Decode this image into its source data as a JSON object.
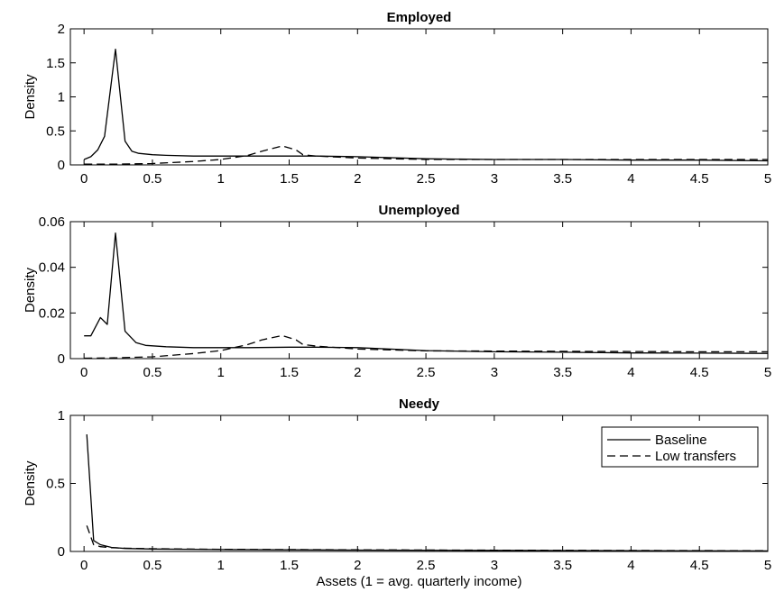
{
  "chart_data": [
    {
      "type": "line",
      "title": "Employed",
      "ylabel": "Density",
      "xlabel": "",
      "xlim": [
        -0.1,
        5
      ],
      "ylim": [
        0,
        2
      ],
      "xticks": [
        0,
        0.5,
        1,
        1.5,
        2,
        2.5,
        3,
        3.5,
        4,
        4.5,
        5
      ],
      "xtick_labels": [
        "0",
        "0.5",
        "1",
        "1.5",
        "2",
        "2.5",
        "3",
        "3.5",
        "4",
        "4.5",
        "5"
      ],
      "yticks": [
        0,
        0.5,
        1,
        1.5,
        2
      ],
      "ytick_labels": [
        "0",
        "0.5",
        "1",
        "1.5",
        "2"
      ],
      "series": [
        {
          "name": "Baseline",
          "style": "solid",
          "x": [
            0,
            0.05,
            0.1,
            0.15,
            0.23,
            0.3,
            0.35,
            0.4,
            0.5,
            0.6,
            0.8,
            1.0,
            1.2,
            1.5,
            1.7,
            2.0,
            2.5,
            3.0,
            3.5,
            4.0,
            4.5,
            5.0
          ],
          "y": [
            0.08,
            0.12,
            0.22,
            0.42,
            1.7,
            0.35,
            0.2,
            0.17,
            0.15,
            0.14,
            0.13,
            0.13,
            0.13,
            0.13,
            0.13,
            0.12,
            0.09,
            0.08,
            0.08,
            0.07,
            0.07,
            0.06
          ]
        },
        {
          "name": "Low transfers",
          "style": "dashed",
          "x": [
            0,
            0.2,
            0.5,
            0.8,
            1.0,
            1.2,
            1.3,
            1.45,
            1.55,
            1.6,
            1.7,
            2.0,
            2.5,
            3.0,
            3.5,
            4.0,
            4.5,
            5.0
          ],
          "y": [
            0.01,
            0.01,
            0.02,
            0.05,
            0.08,
            0.14,
            0.2,
            0.28,
            0.22,
            0.15,
            0.13,
            0.1,
            0.08,
            0.08,
            0.08,
            0.08,
            0.08,
            0.08
          ]
        }
      ]
    },
    {
      "type": "line",
      "title": "Unemployed",
      "ylabel": "Density",
      "xlabel": "",
      "xlim": [
        -0.1,
        5
      ],
      "ylim": [
        0,
        0.06
      ],
      "xticks": [
        0,
        0.5,
        1,
        1.5,
        2,
        2.5,
        3,
        3.5,
        4,
        4.5,
        5
      ],
      "xtick_labels": [
        "0",
        "0.5",
        "1",
        "1.5",
        "2",
        "2.5",
        "3",
        "3.5",
        "4",
        "4.5",
        "5"
      ],
      "yticks": [
        0,
        0.02,
        0.04,
        0.06
      ],
      "ytick_labels": [
        "0",
        "0.02",
        "0.04",
        "0.06"
      ],
      "series": [
        {
          "name": "Baseline",
          "style": "solid",
          "x": [
            0,
            0.05,
            0.12,
            0.17,
            0.23,
            0.3,
            0.38,
            0.45,
            0.6,
            0.8,
            1.0,
            1.2,
            1.5,
            1.7,
            2.0,
            2.5,
            3.0,
            3.5,
            4.0,
            4.5,
            5.0
          ],
          "y": [
            0.01,
            0.01,
            0.018,
            0.015,
            0.055,
            0.012,
            0.007,
            0.0058,
            0.0052,
            0.0048,
            0.0048,
            0.0048,
            0.005,
            0.005,
            0.0048,
            0.0035,
            0.003,
            0.0028,
            0.0025,
            0.0024,
            0.0023
          ]
        },
        {
          "name": "Low transfers",
          "style": "dashed",
          "x": [
            0,
            0.2,
            0.5,
            0.8,
            1.0,
            1.2,
            1.3,
            1.45,
            1.55,
            1.6,
            1.7,
            2.0,
            2.5,
            3.0,
            3.5,
            4.0,
            4.5,
            5.0
          ],
          "y": [
            0.0002,
            0.0003,
            0.0008,
            0.0022,
            0.0035,
            0.0062,
            0.0082,
            0.0101,
            0.0082,
            0.0062,
            0.0055,
            0.0042,
            0.0034,
            0.0033,
            0.0032,
            0.0031,
            0.003,
            0.003
          ]
        }
      ]
    },
    {
      "type": "line",
      "title": "Needy",
      "ylabel": "Density",
      "xlabel": "Assets (1 = avg. quarterly income)",
      "xlim": [
        -0.1,
        5
      ],
      "ylim": [
        0,
        1
      ],
      "xticks": [
        0,
        0.5,
        1,
        1.5,
        2,
        2.5,
        3,
        3.5,
        4,
        4.5,
        5
      ],
      "xtick_labels": [
        "0",
        "0.5",
        "1",
        "1.5",
        "2",
        "2.5",
        "3",
        "3.5",
        "4",
        "4.5",
        "5"
      ],
      "yticks": [
        0,
        0.5,
        1
      ],
      "ytick_labels": [
        "0",
        "0.5",
        "1"
      ],
      "legend": {
        "position": "top-right",
        "entries": [
          "Baseline",
          "Low transfers"
        ]
      },
      "series": [
        {
          "name": "Baseline",
          "style": "solid",
          "x": [
            0.02,
            0.07,
            0.12,
            0.2,
            0.3,
            0.5,
            1.0,
            2.0,
            3.0,
            4.0,
            5.0
          ],
          "y": [
            0.86,
            0.08,
            0.05,
            0.03,
            0.022,
            0.018,
            0.014,
            0.01,
            0.008,
            0.006,
            0.004
          ]
        },
        {
          "name": "Low transfers",
          "style": "dashed",
          "x": [
            0.02,
            0.07,
            0.12,
            0.2,
            0.3,
            0.5,
            1.0,
            2.0,
            3.0,
            4.0,
            5.0
          ],
          "y": [
            0.19,
            0.05,
            0.035,
            0.028,
            0.024,
            0.02,
            0.016,
            0.012,
            0.009,
            0.007,
            0.005
          ]
        }
      ]
    }
  ]
}
